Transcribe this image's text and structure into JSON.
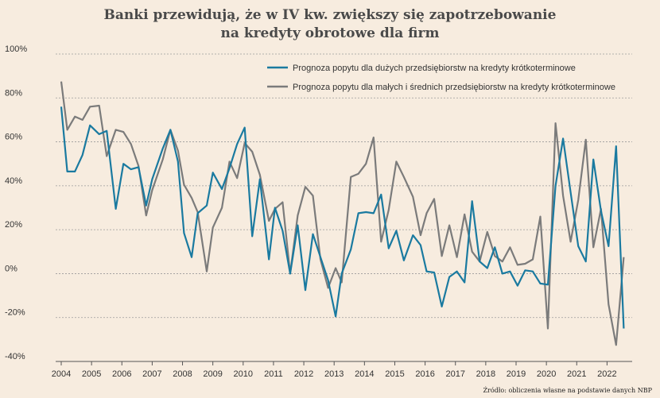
{
  "title_line1": "Banki przewidują, że w IV kw. zwiększy się zapotrzebowanie",
  "title_line2": "na kredyty obrotowe dla firm",
  "source": "Źródło: obliczenia własne na podstawie danych NBP",
  "chart_data": {
    "type": "line",
    "ylim": [
      -40,
      100
    ],
    "yticks": [
      "100%",
      "80%",
      "60%",
      "40%",
      "20%",
      "0%",
      "-20%",
      "-40%"
    ],
    "ytick_values": [
      100,
      80,
      60,
      40,
      20,
      0,
      -20,
      -40
    ],
    "x_start": 2004.0,
    "x_end": 2022.75,
    "xticks": [
      "2004",
      "2005",
      "2006",
      "2007",
      "2008",
      "2009",
      "2010",
      "2011",
      "2012",
      "2013",
      "2014",
      "2015",
      "2016",
      "2017",
      "2018",
      "2019",
      "2020",
      "2021",
      "2022"
    ],
    "xtick_values": [
      2004,
      2005,
      2006,
      2007,
      2008,
      2009,
      2010,
      2011,
      2012,
      2013,
      2014,
      2015,
      2016,
      2017,
      2018,
      2019,
      2020,
      2021,
      2022
    ],
    "grid": true,
    "legend_position": "top-right",
    "series": [
      {
        "name": "Prognoza popytu dla dużych przedsiębiorstw na kredyty krótkoterminowe",
        "color": "#1a7aa0",
        "x": [
          2004.0,
          2004.2,
          2004.45,
          2004.7,
          2004.95,
          2005.25,
          2005.5,
          2005.8,
          2006.05,
          2006.3,
          2006.55,
          2006.8,
          2007.0,
          2007.35,
          2007.6,
          2007.85,
          2008.05,
          2008.3,
          2008.5,
          2008.8,
          2009.0,
          2009.3,
          2009.55,
          2009.8,
          2010.05,
          2010.3,
          2010.55,
          2010.85,
          2011.05,
          2011.3,
          2011.55,
          2011.8,
          2012.05,
          2012.3,
          2012.55,
          2012.8,
          2013.05,
          2013.25,
          2013.55,
          2013.8,
          2014.05,
          2014.3,
          2014.55,
          2014.8,
          2015.05,
          2015.3,
          2015.6,
          2015.85,
          2016.05,
          2016.3,
          2016.55,
          2016.8,
          2017.05,
          2017.3,
          2017.55,
          2017.8,
          2018.05,
          2018.3,
          2018.55,
          2018.8,
          2019.05,
          2019.3,
          2019.55,
          2019.8,
          2020.05,
          2020.3,
          2020.55,
          2020.8,
          2021.05,
          2021.3,
          2021.55,
          2021.8,
          2022.05,
          2022.3,
          2022.55
        ],
        "values": [
          76,
          46.5,
          46.5,
          54,
          67.5,
          63.5,
          65,
          29.5,
          50,
          47.5,
          48.5,
          31,
          43,
          57,
          65.5,
          51,
          18.5,
          7.5,
          27.5,
          31,
          46,
          38.5,
          48,
          59,
          66.5,
          17,
          43,
          6.5,
          30,
          19.5,
          0,
          22,
          -7.5,
          18,
          7.5,
          -3,
          -19.5,
          0,
          11,
          27.5,
          28,
          27.5,
          36,
          11.5,
          19.5,
          6,
          17.5,
          13,
          1,
          0.5,
          -15,
          -1.5,
          1,
          -4,
          33,
          5.5,
          2.5,
          12,
          0,
          1,
          -5.5,
          1.5,
          1,
          -4.5,
          -5,
          40,
          61.5,
          37,
          12.5,
          5.5,
          52,
          28.5,
          12.5,
          58,
          -25
        ]
      },
      {
        "name": "Prognoza popytu dla małych i średnich przedsiębiorstw na kredyty krótkoterminowe",
        "color": "#7b7b7b",
        "x": [
          2004.0,
          2004.2,
          2004.45,
          2004.7,
          2004.95,
          2005.25,
          2005.5,
          2005.8,
          2006.05,
          2006.3,
          2006.55,
          2006.8,
          2007.0,
          2007.35,
          2007.6,
          2007.85,
          2008.05,
          2008.3,
          2008.5,
          2008.8,
          2009.0,
          2009.3,
          2009.55,
          2009.8,
          2010.05,
          2010.3,
          2010.55,
          2010.85,
          2011.05,
          2011.3,
          2011.55,
          2011.8,
          2012.05,
          2012.3,
          2012.55,
          2012.8,
          2013.05,
          2013.25,
          2013.55,
          2013.8,
          2014.05,
          2014.3,
          2014.55,
          2014.8,
          2015.05,
          2015.3,
          2015.6,
          2015.85,
          2016.05,
          2016.3,
          2016.55,
          2016.8,
          2017.05,
          2017.3,
          2017.55,
          2017.8,
          2018.05,
          2018.3,
          2018.55,
          2018.8,
          2019.05,
          2019.3,
          2019.55,
          2019.8,
          2020.05,
          2020.3,
          2020.55,
          2020.8,
          2021.05,
          2021.3,
          2021.55,
          2021.8,
          2022.05,
          2022.3,
          2022.55
        ],
        "values": [
          87.5,
          65.5,
          71.5,
          70,
          76,
          76.5,
          53.5,
          65.5,
          64.5,
          59,
          49,
          26.5,
          38,
          52,
          65.5,
          56,
          40.5,
          34.5,
          28,
          1,
          21,
          30,
          51,
          43.5,
          59.5,
          55.5,
          45,
          24,
          29.5,
          32.5,
          0,
          26.5,
          39.5,
          35.5,
          6.5,
          -6.5,
          2.5,
          -4,
          44,
          45.5,
          50,
          62,
          14.5,
          29,
          51,
          44,
          35,
          17.5,
          27.5,
          34,
          8,
          22,
          7.5,
          27,
          10,
          5.5,
          19,
          8,
          5.5,
          12,
          4,
          4.5,
          6.5,
          26,
          -25,
          68.5,
          35.5,
          14.5,
          33.5,
          61,
          12,
          29.5,
          -14,
          -32.5,
          7.5
        ]
      }
    ]
  }
}
